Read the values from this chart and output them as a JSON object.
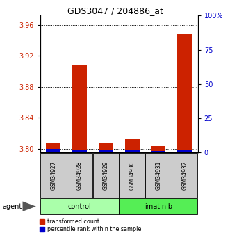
{
  "title": "GDS3047 / 204886_at",
  "samples": [
    "GSM34927",
    "GSM34928",
    "GSM34929",
    "GSM34930",
    "GSM34931",
    "GSM34932"
  ],
  "red_values": [
    3.808,
    3.908,
    3.808,
    3.812,
    3.803,
    3.948
  ],
  "blue_values": [
    2.5,
    1.5,
    1.5,
    1.5,
    1.0,
    2.0
  ],
  "ylim_left": [
    3.795,
    3.972
  ],
  "ylim_right": [
    0,
    100
  ],
  "yticks_left": [
    3.8,
    3.84,
    3.88,
    3.92,
    3.96
  ],
  "yticks_right": [
    0,
    25,
    50,
    75,
    100
  ],
  "ytick_labels_right": [
    "0",
    "25",
    "50",
    "75",
    "100%"
  ],
  "bar_width": 0.55,
  "control_color": "#aaffaa",
  "imatinib_color": "#55ee55",
  "sample_box_color": "#cccccc",
  "legend_red": "transformed count",
  "legend_blue": "percentile rank within the sample",
  "red_color": "#cc2200",
  "blue_color": "#0000cc",
  "tick_color_left": "#cc2200",
  "tick_color_right": "#0000cc",
  "fig_width": 3.31,
  "fig_height": 3.45,
  "dpi": 100
}
